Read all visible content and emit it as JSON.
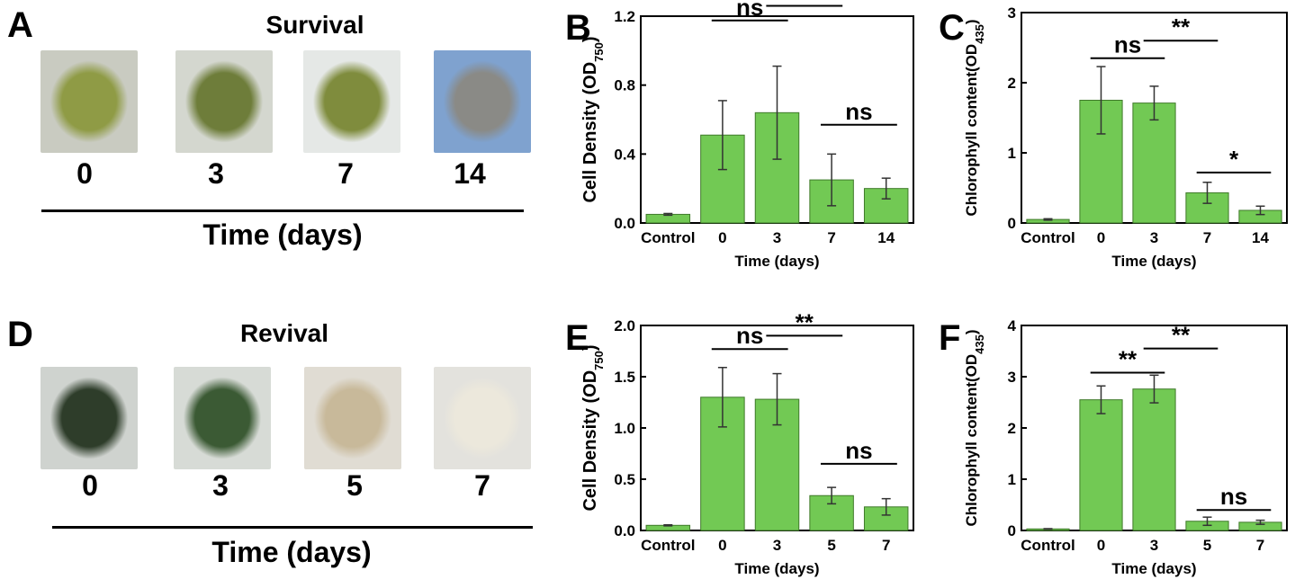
{
  "panels": {
    "A": {
      "letter": "A",
      "title": "Survival",
      "days": [
        "0",
        "3",
        "7",
        "14"
      ],
      "xlabel": "Time (days)"
    },
    "D": {
      "letter": "D",
      "title": "Revival",
      "days": [
        "0",
        "3",
        "5",
        "7"
      ],
      "xlabel": "Time (days)"
    }
  },
  "colors": {
    "bar": "#72c954",
    "bar_edge": "#3f7a2a"
  },
  "photo_colors": {
    "A": [
      [
        "#c9cbc1",
        "#8f9b45"
      ],
      [
        "#d4d7cf",
        "#6e7d3a"
      ],
      [
        "#e5e8e6",
        "#7f8c3d"
      ],
      [
        "#7fa2cf",
        "#8a8a86"
      ]
    ],
    "D": [
      [
        "#cfd3cf",
        "#2e3d2a"
      ],
      [
        "#d7dbd6",
        "#3b5a34"
      ],
      [
        "#e0dcd3",
        "#c8b99a"
      ],
      [
        "#e3e2dd",
        "#ece8dc"
      ]
    ]
  },
  "chart_data": [
    {
      "id": "B",
      "letter": "B",
      "type": "bar",
      "ylabel": "Cell Density (OD",
      "ylabel_sub": "750",
      "ylabel_end": ")",
      "xlabel": "Time (days)",
      "categories": [
        "Control",
        "0",
        "3",
        "7",
        "14"
      ],
      "values": [
        0.05,
        0.51,
        0.64,
        0.25,
        0.2
      ],
      "errors": [
        0.005,
        0.2,
        0.27,
        0.15,
        0.06
      ],
      "ylim": [
        0,
        1.2
      ],
      "yticks": [
        "0.0",
        "0.4",
        "0.8",
        "1.2"
      ],
      "ytick_values": [
        0,
        0.4,
        0.8,
        1.2
      ],
      "annotations": [
        {
          "text": "ns",
          "from": 1,
          "to": 2,
          "y": 1.175
        },
        {
          "text": "**",
          "from": 2,
          "to": 3,
          "y": 1.26
        },
        {
          "text": "ns",
          "from": 3,
          "to": 4,
          "y": 0.57
        }
      ]
    },
    {
      "id": "C",
      "letter": "C",
      "type": "bar",
      "ylabel": "Chlorophyll content(OD",
      "ylabel_sub": "435",
      "ylabel_end": ")",
      "xlabel": "Time (days)",
      "categories": [
        "Control",
        "0",
        "3",
        "7",
        "14"
      ],
      "values": [
        0.05,
        1.75,
        1.71,
        0.43,
        0.18
      ],
      "errors": [
        0.01,
        0.48,
        0.24,
        0.15,
        0.06
      ],
      "ylim": [
        0,
        3
      ],
      "yticks": [
        "0",
        "1",
        "2",
        "3"
      ],
      "ytick_values": [
        0,
        1,
        2,
        3
      ],
      "annotations": [
        {
          "text": "ns",
          "from": 1,
          "to": 2,
          "y": 2.35
        },
        {
          "text": "**",
          "from": 2,
          "to": 3,
          "y": 2.6
        },
        {
          "text": "*",
          "from": 3,
          "to": 4,
          "y": 0.72
        }
      ]
    },
    {
      "id": "E",
      "letter": "E",
      "type": "bar",
      "ylabel": "Cell Density (OD",
      "ylabel_sub": "750",
      "ylabel_end": ")",
      "xlabel": "Time (days)",
      "categories": [
        "Control",
        "0",
        "3",
        "5",
        "7"
      ],
      "values": [
        0.05,
        1.3,
        1.28,
        0.34,
        0.23
      ],
      "errors": [
        0.005,
        0.29,
        0.25,
        0.08,
        0.08
      ],
      "ylim": [
        0,
        2.0
      ],
      "yticks": [
        "0.0",
        "0.5",
        "1.0",
        "1.5",
        "2.0"
      ],
      "ytick_values": [
        0,
        0.5,
        1.0,
        1.5,
        2.0
      ],
      "annotations": [
        {
          "text": "ns",
          "from": 1,
          "to": 2,
          "y": 1.77
        },
        {
          "text": "**",
          "from": 2,
          "to": 3,
          "y": 1.9
        },
        {
          "text": "ns",
          "from": 3,
          "to": 4,
          "y": 0.65
        }
      ]
    },
    {
      "id": "F",
      "letter": "F",
      "type": "bar",
      "ylabel": "Chlorophyll content(OD",
      "ylabel_sub": "435",
      "ylabel_end": ")",
      "xlabel": "Time (days)",
      "categories": [
        "Control",
        "0",
        "3",
        "5",
        "7"
      ],
      "values": [
        0.03,
        2.55,
        2.76,
        0.18,
        0.16
      ],
      "errors": [
        0.005,
        0.27,
        0.27,
        0.08,
        0.04
      ],
      "ylim": [
        0,
        4
      ],
      "yticks": [
        "0",
        "1",
        "2",
        "3",
        "4"
      ],
      "ytick_values": [
        0,
        1,
        2,
        3,
        4
      ],
      "annotations": [
        {
          "text": "**",
          "from": 1,
          "to": 2,
          "y": 3.08
        },
        {
          "text": "**",
          "from": 2,
          "to": 3,
          "y": 3.55
        },
        {
          "text": "ns",
          "from": 3,
          "to": 4,
          "y": 0.4
        }
      ]
    }
  ]
}
